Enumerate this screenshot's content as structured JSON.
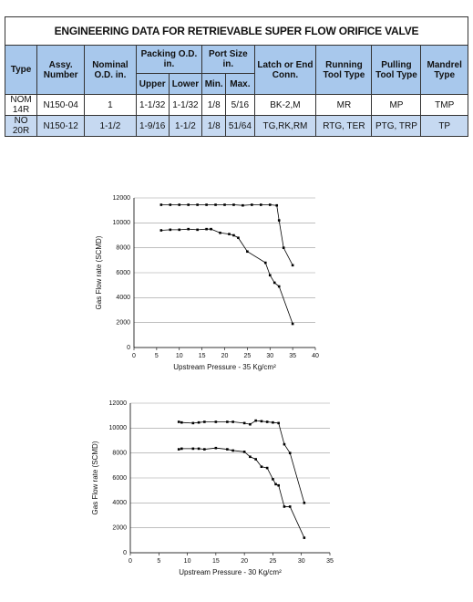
{
  "table": {
    "title": "ENGINEERING DATA FOR RETRIEVABLE SUPER FLOW ORIFICE VALVE",
    "header_top": [
      "Type",
      "Assy. Number",
      "Nominal O.D. in.",
      "Packing O.D. in.",
      "Port Size in.",
      "Latch or End Conn.",
      "Running Tool Type",
      "Pulling Tool Type",
      "Mandrel Type"
    ],
    "header_sub": [
      "Upper",
      "Lower",
      "Min.",
      "Max."
    ],
    "rows": [
      [
        "NOM 14R",
        "N150-04",
        "1",
        "1-1/32",
        "1-1/32",
        "1/8",
        "5/16",
        "BK-2,M",
        "MR",
        "MP",
        "TMP"
      ],
      [
        "NO 20R",
        "N150-12",
        "1-1/2",
        "1-9/16",
        "1-1/2",
        "1/8",
        "51/64",
        "TG,RK,RM",
        "RTG, TER",
        "PTG, TRP",
        "TP"
      ]
    ]
  },
  "chart_data": [
    {
      "type": "line",
      "x_label": "Upstream Pressure - 35 Kg/cm²",
      "y_label": "Gas Flow rate (SCMD)",
      "xlim": [
        0,
        40
      ],
      "xticks": [
        0,
        5,
        10,
        15,
        20,
        25,
        30,
        35,
        40
      ],
      "ylim": [
        0,
        12000
      ],
      "yticks": [
        0,
        2000,
        4000,
        6000,
        8000,
        10000,
        12000
      ],
      "grid": true,
      "series": [
        {
          "color": "#000000",
          "x": [
            6,
            8,
            10,
            12,
            14,
            16,
            18,
            20,
            22,
            24,
            26,
            28,
            30,
            31.5,
            32,
            33,
            35
          ],
          "values": [
            11450,
            11450,
            11450,
            11450,
            11450,
            11450,
            11450,
            11450,
            11450,
            11400,
            11450,
            11450,
            11450,
            11400,
            10200,
            8000,
            6600
          ]
        },
        {
          "color": "#000000",
          "x": [
            6,
            8,
            10,
            12,
            14,
            16,
            17,
            19,
            21,
            22,
            23,
            25,
            29,
            30,
            31,
            32,
            35
          ],
          "values": [
            9400,
            9450,
            9450,
            9500,
            9450,
            9500,
            9500,
            9200,
            9100,
            9000,
            8800,
            7700,
            6800,
            5800,
            5200,
            4900,
            1900
          ]
        }
      ]
    },
    {
      "type": "line",
      "x_label": "Upstream Pressure - 30 Kg/cm²",
      "y_label": "Gas Flow rate (SCMD)",
      "xlim": [
        0,
        35
      ],
      "xticks": [
        0,
        5,
        10,
        15,
        20,
        25,
        30,
        35
      ],
      "ylim": [
        0,
        12000
      ],
      "yticks": [
        0,
        2000,
        4000,
        6000,
        8000,
        10000,
        12000
      ],
      "grid": true,
      "series": [
        {
          "color": "#000000",
          "x": [
            8.5,
            9,
            11,
            12,
            13,
            15,
            17,
            18,
            20,
            21,
            22,
            23,
            24,
            25,
            26,
            27,
            28,
            30.5
          ],
          "values": [
            10500,
            10450,
            10400,
            10450,
            10500,
            10500,
            10500,
            10500,
            10400,
            10300,
            10600,
            10550,
            10500,
            10450,
            10400,
            8700,
            8000,
            4000
          ]
        },
        {
          "color": "#000000",
          "x": [
            8.5,
            9,
            11,
            12,
            13,
            15,
            17,
            18,
            20,
            21,
            22,
            23,
            24,
            25,
            25.5,
            26,
            27,
            28,
            30.5
          ],
          "values": [
            8300,
            8350,
            8350,
            8350,
            8300,
            8400,
            8300,
            8200,
            8100,
            7700,
            7500,
            6900,
            6800,
            5900,
            5500,
            5400,
            3700,
            3700,
            1200
          ]
        }
      ]
    }
  ]
}
